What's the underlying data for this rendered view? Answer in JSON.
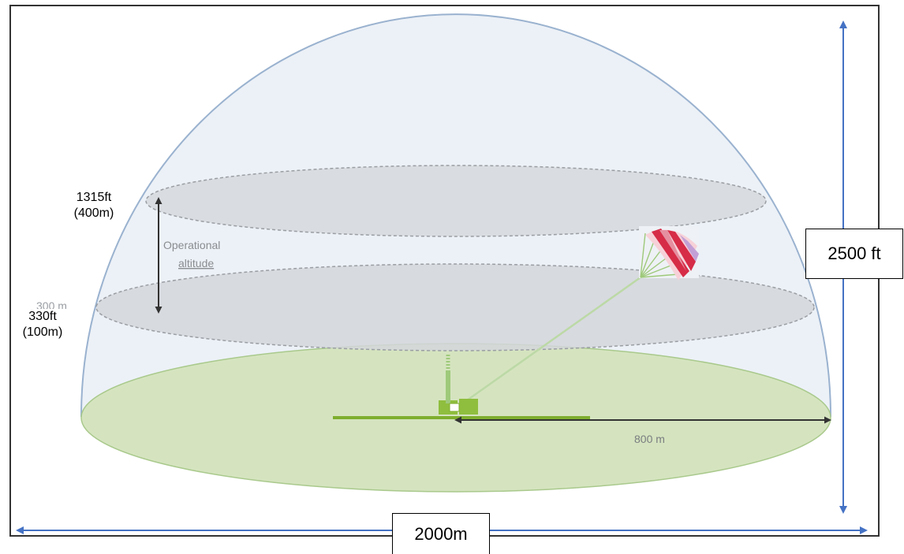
{
  "labels": {
    "alt_top_ft": "1315ft",
    "alt_top_m": "(400m)",
    "alt_bottom_ft": "330ft",
    "alt_bottom_m": "(100m)",
    "operational_line1": "Operational",
    "operational_line2": "altitude",
    "radius": "800 m",
    "height": "2500 ft",
    "width": "2000m",
    "faded_marker": "300 m"
  },
  "colors": {
    "dome_stroke": "#9ab2cf",
    "dome_fill": "#e8eef5",
    "ground_fill": "#d5e4bf",
    "ground_stroke": "#a9c98c",
    "plane_fill": "#d3d6da",
    "plane_stroke": "#9a9ea3",
    "arrow_blue": "#4472c4",
    "kite_red": "#d62c47",
    "kite_pink": "#e58fa0",
    "kite_green": "#9ec97a",
    "winch_green": "#7fae2e"
  }
}
